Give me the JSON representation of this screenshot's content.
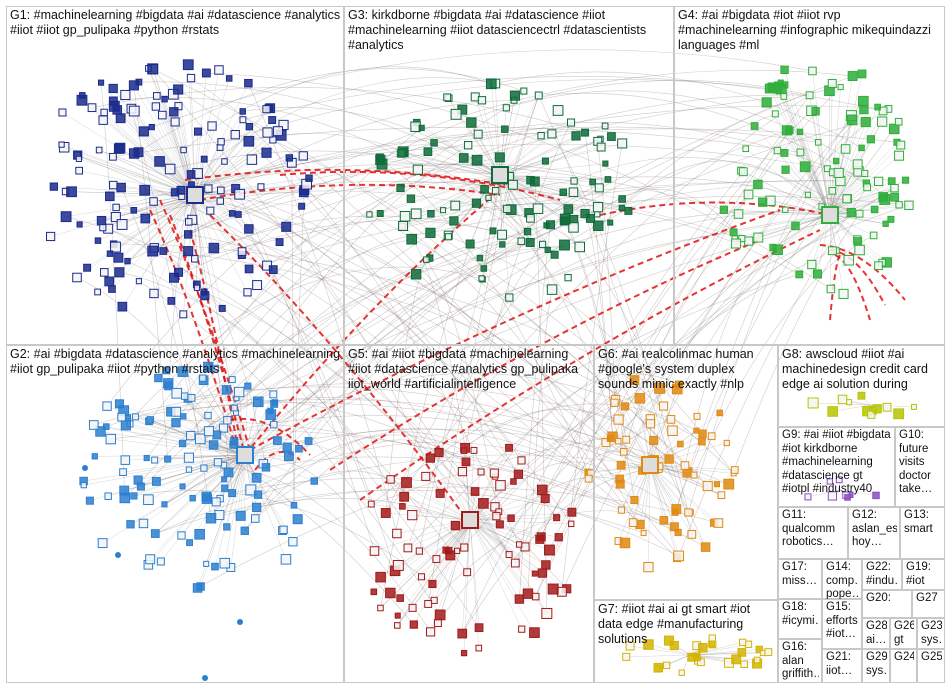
{
  "graph": {
    "groups": [
      {
        "id": "G1",
        "label": "G1: #machinelearning #bigdata #ai #datascience #analytics #iiot #iiot gp_pulipaka #python #rstats",
        "color": "#1a2b8c"
      },
      {
        "id": "G2",
        "label": "G2: #ai #bigdata #datascience #analytics #machinelearning #iiot gp_pulipaka #iiot #python #rstats",
        "color": "#2b7fd0"
      },
      {
        "id": "G3",
        "label": "G3: kirkdborne #bigdata #ai #datascience #iiot #machinelearning #iiot datasciencectrl #datascientists #analytics",
        "color": "#0f6b3a"
      },
      {
        "id": "G4",
        "label": "G4: #ai #bigdata #iot #iiot rvp #machinelearning #infographic mikequindazzi languages #ml",
        "color": "#2fae3a"
      },
      {
        "id": "G5",
        "label": "G5: #ai #iiot #bigdata #machinelearning #iiot #datascience #analytics gp_pulipaka iiot_world #artificialintelligence",
        "color": "#a31a1a"
      },
      {
        "id": "G6",
        "label": "G6: #ai realcolinmac human #google's system duplex sounds mimic exactly #nlp",
        "color": "#e08a12"
      },
      {
        "id": "G7",
        "label": "G7: #iiot #ai ai gt smart #iot data edge #manufacturing solutions",
        "color": "#d4b400"
      },
      {
        "id": "G8",
        "label": "G8: awscloud #iiot #ai machinedesign credit card edge ai solution during",
        "color": "#b7c400"
      },
      {
        "id": "G9",
        "label": "G9: #ai #iiot #bigdata #iot kirkdborne #machinelearning #datascience gt #iotpl #industry40",
        "color": "#8a4fc0"
      },
      {
        "id": "G10",
        "label": "G10: future visits doctor take…",
        "color": "#333"
      },
      {
        "id": "G11",
        "label": "G11: qualcomm robotics…",
        "color": "#333"
      },
      {
        "id": "G12",
        "label": "G12: aslan_es hoy…",
        "color": "#333"
      },
      {
        "id": "G13",
        "label": "G13: smart",
        "color": "#333"
      },
      {
        "id": "G14",
        "label": "G14: comp… pope…",
        "color": "#333"
      },
      {
        "id": "G15",
        "label": "G15: efforts #iot…",
        "color": "#333"
      },
      {
        "id": "G16",
        "label": "G16: alan griffith…",
        "color": "#333"
      },
      {
        "id": "G17",
        "label": "G17: miss…",
        "color": "#333"
      },
      {
        "id": "G18",
        "label": "G18: #icymi…",
        "color": "#333"
      },
      {
        "id": "G19",
        "label": "G19: #iot",
        "color": "#333"
      },
      {
        "id": "G20",
        "label": "G20:",
        "color": "#333"
      },
      {
        "id": "G21",
        "label": "G21: iiot…",
        "color": "#333"
      },
      {
        "id": "G22",
        "label": "G22: #indu…",
        "color": "#333"
      },
      {
        "id": "G23",
        "label": "G23: sys…",
        "color": "#333"
      },
      {
        "id": "G24",
        "label": "G24",
        "color": "#333"
      },
      {
        "id": "G25",
        "label": "G25",
        "color": "#333"
      },
      {
        "id": "G26",
        "label": "G26: gt",
        "color": "#333"
      },
      {
        "id": "G27",
        "label": "G27",
        "color": "#333"
      },
      {
        "id": "G28",
        "label": "G28: ai…",
        "color": "#333"
      },
      {
        "id": "G29",
        "label": "G29: sys…",
        "color": "#333"
      }
    ]
  }
}
